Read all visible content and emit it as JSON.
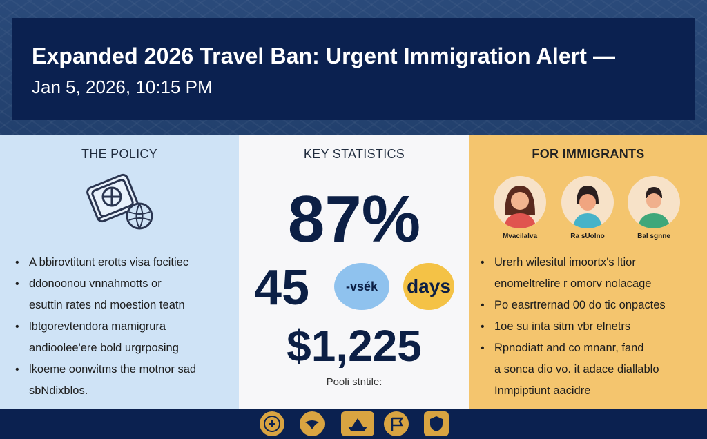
{
  "header": {
    "title": "Expanded 2026 Travel Ban: Urgent Immigration Alert —",
    "timestamp": "Jan 5, 2026, 10:15 PM"
  },
  "policy": {
    "heading": "THE POLICY",
    "bullets": [
      "A bbirovtitunt erotts visa focitiec",
      "ddonoonou vnnahmotts or",
      "esuttin rates nd moestion teatn",
      "lbtgorevtendora mamigrura",
      "andioolee'ere bold urgrposing",
      "lkoeme oonwitms the motnor sad",
      "sbNdixblos."
    ],
    "icon": "passport-globe-icon"
  },
  "stats": {
    "heading": "KEY STATISTICS",
    "percent": "87%",
    "number": "45",
    "vs_label": "-vsék",
    "days_label": "days",
    "money": "$1,225",
    "caption": "Pooli stntile:"
  },
  "immigrants": {
    "heading": "FOR IMMIGRANTS",
    "people": [
      {
        "label": "Mvacilalva",
        "icon": "woman-avatar-icon"
      },
      {
        "label": "Ra sUolno",
        "icon": "girl-avatar-icon"
      },
      {
        "label": "Bal sgnne",
        "icon": "man-avatar-icon"
      }
    ],
    "bullets": [
      "Urerh wilesitul imoortx's ltior",
      "enomeltrelire r omorv nolacage",
      "Po easrtrernad 00 do tic onpactes",
      "1oe su inta sitm vbr elnetrs",
      "Rpnodiatt and co mnanr, fand",
      "a sonca dio vo. it adace diallablo",
      "Inmpiptiunt aacidre"
    ]
  },
  "footer": {
    "emblems": [
      "seal-icon",
      "eagle-icon",
      "ship-icon",
      "flag-icon",
      "shield-icon"
    ]
  },
  "colors": {
    "header_bg": "#0b2150",
    "policy_bg": "#cfe3f6",
    "stats_bg": "#f7f7f9",
    "immigrants_bg": "#f4c56e",
    "stat_text": "#0c1f45"
  }
}
